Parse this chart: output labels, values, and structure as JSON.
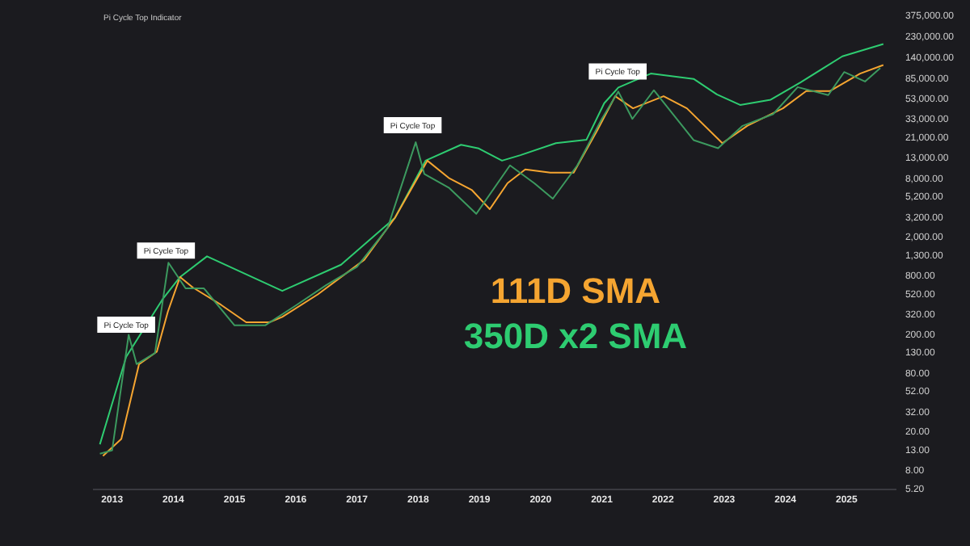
{
  "chart_data": {
    "type": "line",
    "title": "Pi Cycle Top Indicator",
    "log": "y",
    "grid": false,
    "legend": "center",
    "marker": "none",
    "line_style": "solid",
    "xlim": [
      2012.7,
      2025.8
    ],
    "xticks": [
      2013,
      2014,
      2015,
      2016,
      2017,
      2018,
      2019,
      2020,
      2021,
      2022,
      2023,
      2024,
      2025
    ],
    "ylim": [
      5.2,
      375000
    ],
    "yticks": [
      {
        "value": 5.2,
        "label": "5.20"
      },
      {
        "value": 8,
        "label": "8.00"
      },
      {
        "value": 13,
        "label": "13.00"
      },
      {
        "value": 20,
        "label": "20.00"
      },
      {
        "value": 32,
        "label": "32.00"
      },
      {
        "value": 52,
        "label": "52.00"
      },
      {
        "value": 80,
        "label": "80.00"
      },
      {
        "value": 130,
        "label": "130.00"
      },
      {
        "value": 200,
        "label": "200.00"
      },
      {
        "value": 320,
        "label": "320.00"
      },
      {
        "value": 520,
        "label": "520.00"
      },
      {
        "value": 800,
        "label": "800.00"
      },
      {
        "value": 1300,
        "label": "1,300.00"
      },
      {
        "value": 2000,
        "label": "2,000.00"
      },
      {
        "value": 3200,
        "label": "3,200.00"
      },
      {
        "value": 5200,
        "label": "5,200.00"
      },
      {
        "value": 8000,
        "label": "8,000.00"
      },
      {
        "value": 13000,
        "label": "13,000.00"
      },
      {
        "value": 21000,
        "label": "21,000.00"
      },
      {
        "value": 33000,
        "label": "33,000.00"
      },
      {
        "value": 53000,
        "label": "53,000.00"
      },
      {
        "value": 85000,
        "label": "85,000.00"
      },
      {
        "value": 140000,
        "label": "140,000.00"
      },
      {
        "value": 230000,
        "label": "230,000.00"
      },
      {
        "value": 375000,
        "label": "375,000.00"
      }
    ],
    "series": [
      {
        "color": "#3c9a5f",
        "x": [
          2012.8,
          2013.0,
          2013.27,
          2013.4,
          2013.7,
          2013.92,
          2014.2,
          2014.5,
          2015.0,
          2015.5,
          2016.0,
          2016.5,
          2017.0,
          2017.5,
          2017.96,
          2018.1,
          2018.5,
          2018.95,
          2019.5,
          2019.9,
          2020.2,
          2020.6,
          2021.0,
          2021.27,
          2021.5,
          2021.85,
          2022.5,
          2022.9,
          2023.3,
          2023.8,
          2024.2,
          2024.7,
          2024.96,
          2025.3,
          2025.55
        ],
        "values": [
          12,
          13,
          200,
          100,
          130,
          1100,
          600,
          600,
          250,
          250,
          400,
          650,
          1000,
          2500,
          19000,
          9000,
          6500,
          3500,
          11000,
          7200,
          5000,
          11000,
          33000,
          63000,
          33000,
          65000,
          20000,
          16500,
          28000,
          37000,
          70000,
          58000,
          100000,
          80000,
          110000
        ]
      },
      {
        "name": "111D SMA",
        "color": "#f5a531",
        "x": [
          2012.85,
          2013.15,
          2013.44,
          2013.73,
          2013.91,
          2014.11,
          2014.32,
          2014.78,
          2015.19,
          2015.57,
          2015.78,
          2016.36,
          2017.12,
          2017.62,
          2018.15,
          2018.5,
          2018.88,
          2019.17,
          2019.46,
          2019.75,
          2020.16,
          2020.54,
          2020.92,
          2021.22,
          2021.51,
          2022.01,
          2022.39,
          2022.97,
          2023.38,
          2023.96,
          2024.34,
          2024.73,
          2025.22,
          2025.6
        ],
        "values": [
          11.4,
          17,
          100,
          134,
          345,
          785,
          612,
          406,
          269,
          269,
          305,
          520,
          1180,
          3180,
          12300,
          8170,
          6120,
          3900,
          7230,
          10000,
          9250,
          9250,
          24800,
          56500,
          42400,
          56500,
          42400,
          18600,
          28100,
          42400,
          63800,
          63800,
          96400,
          118000
        ]
      },
      {
        "name": "350D x2 SMA",
        "color": "#2ecc71",
        "x": [
          2012.8,
          2013.23,
          2013.82,
          2014.11,
          2014.55,
          2015.78,
          2016.74,
          2017.62,
          2018.12,
          2018.7,
          2018.99,
          2019.37,
          2019.67,
          2020.25,
          2020.75,
          2021.04,
          2021.27,
          2021.8,
          2022.5,
          2022.88,
          2023.26,
          2023.76,
          2024.25,
          2024.93,
          2025.6
        ],
        "values": [
          15,
          119,
          460,
          785,
          1280,
          565,
          1050,
          3180,
          12300,
          17900,
          16400,
          12300,
          14000,
          18600,
          20200,
          47900,
          69300,
          96400,
          85100,
          58900,
          45900,
          52000,
          78500,
          145000,
          194000
        ]
      }
    ],
    "annotations": [
      {
        "text": "Pi Cycle Top",
        "x": 2013.23,
        "y": 180
      },
      {
        "text": "Pi Cycle Top",
        "x": 2013.88,
        "y": 1040
      },
      {
        "text": "Pi Cycle Top",
        "x": 2017.91,
        "y": 20200
      },
      {
        "text": "Pi Cycle Top",
        "x": 2021.26,
        "y": 72000
      }
    ]
  }
}
